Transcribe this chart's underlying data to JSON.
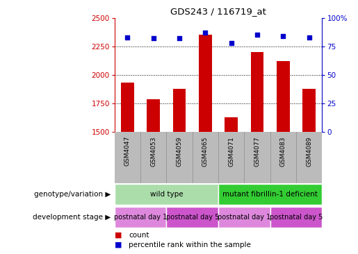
{
  "title": "GDS243 / 116719_at",
  "samples": [
    "GSM4047",
    "GSM4053",
    "GSM4059",
    "GSM4065",
    "GSM4071",
    "GSM4077",
    "GSM4083",
    "GSM4089"
  ],
  "counts": [
    1930,
    1790,
    1880,
    2350,
    1630,
    2200,
    2120,
    1880
  ],
  "percentiles": [
    83,
    82,
    82,
    87,
    78,
    85,
    84,
    83
  ],
  "ylim_left": [
    1500,
    2500
  ],
  "ylim_right": [
    0,
    100
  ],
  "yticks_left": [
    1500,
    1750,
    2000,
    2250,
    2500
  ],
  "yticks_right": [
    0,
    25,
    50,
    75,
    100
  ],
  "ytick_right_labels": [
    "0",
    "25",
    "50",
    "75",
    "100%"
  ],
  "bar_color": "#cc0000",
  "scatter_color": "#0000cc",
  "bar_width": 0.5,
  "genotype_groups": [
    {
      "label": "wild type",
      "start": 0,
      "end": 4,
      "color": "#aaddaa"
    },
    {
      "label": "mutant fibrillin-1 deficient",
      "start": 4,
      "end": 8,
      "color": "#33cc33"
    }
  ],
  "stage_groups": [
    {
      "label": "postnatal day 1",
      "start": 0,
      "end": 2,
      "color": "#dd88dd"
    },
    {
      "label": "postnatal day 5",
      "start": 2,
      "end": 4,
      "color": "#cc55cc"
    },
    {
      "label": "postnatal day 1",
      "start": 4,
      "end": 6,
      "color": "#dd88dd"
    },
    {
      "label": "postnatal day 5",
      "start": 6,
      "end": 8,
      "color": "#cc55cc"
    }
  ],
  "left_axis_color": "#cc0000",
  "right_axis_color": "#0000cc",
  "grid_color": "#000000",
  "background_color": "#ffffff",
  "xlabel_area_bg": "#bbbbbb",
  "legend_count_color": "#cc0000",
  "legend_pct_color": "#0000cc",
  "geno_label": "genotype/variation",
  "stage_label": "development stage",
  "legend_count_text": "count",
  "legend_pct_text": "percentile rank within the sample"
}
